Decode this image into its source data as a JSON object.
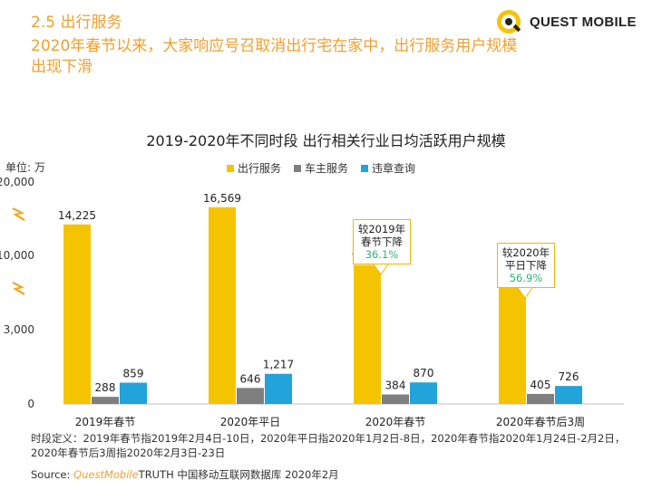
{
  "header": {
    "section_label": "2.5 出行服务",
    "headline": "2020年春节以来，大家响应号召取消出行宅在家中，出行服务用户规模出现下滑"
  },
  "brand": {
    "name": "QUEST MOBILE"
  },
  "colors": {
    "accent": "#f0a030",
    "series_yellow": "#f5c400",
    "series_gray": "#7f7f7f",
    "series_blue": "#22a3d9",
    "callout_pct": "#2bb673"
  },
  "chart": {
    "unit_label": "单位: 万",
    "callouts": [
      {
        "label": "较2019年春节下降",
        "pct": "36.1%"
      },
      {
        "label": "较2020年平日下降",
        "pct": "56.9%"
      }
    ],
    "break_icon": "zigzag-break-icon"
  },
  "chart_data": {
    "type": "bar",
    "title": "2019-2020年不同时段 出行相关行业日均活跃用户规模",
    "categories": [
      "2019年春节",
      "2020年平日",
      "2020年春节",
      "2020年春节后3周"
    ],
    "series": [
      {
        "name": "出行服务",
        "values": [
          14225,
          16569,
          9095,
          7143
        ],
        "labels": [
          "14,225",
          "16,569",
          "9,095",
          "7,143"
        ]
      },
      {
        "name": "车主服务",
        "values": [
          288,
          646,
          384,
          405
        ],
        "labels": [
          "288",
          "646",
          "384",
          "405"
        ]
      },
      {
        "name": "违章查询",
        "values": [
          859,
          1217,
          870,
          726
        ],
        "labels": [
          "859",
          "1,217",
          "870",
          "726"
        ]
      }
    ],
    "y_ticks": [
      "0",
      "3,000",
      "10,000",
      "20,000"
    ],
    "ylabel": "",
    "xlabel": "",
    "axis_break": true,
    "legend_position": "top-center",
    "grid": false
  },
  "footer": {
    "definition": "时段定义：2019年春节指2019年2月4日-10日，2020年平日指2020年1月2日-8日，2020年春节指2020年1月24日-2月2日，2020年春节后3周指2020年2月3日-23日",
    "source_prefix": "Source: ",
    "source_brand": "QuestMobile",
    "source_rest": "TRUTH 中国移动互联网数据库 2020年2月"
  }
}
